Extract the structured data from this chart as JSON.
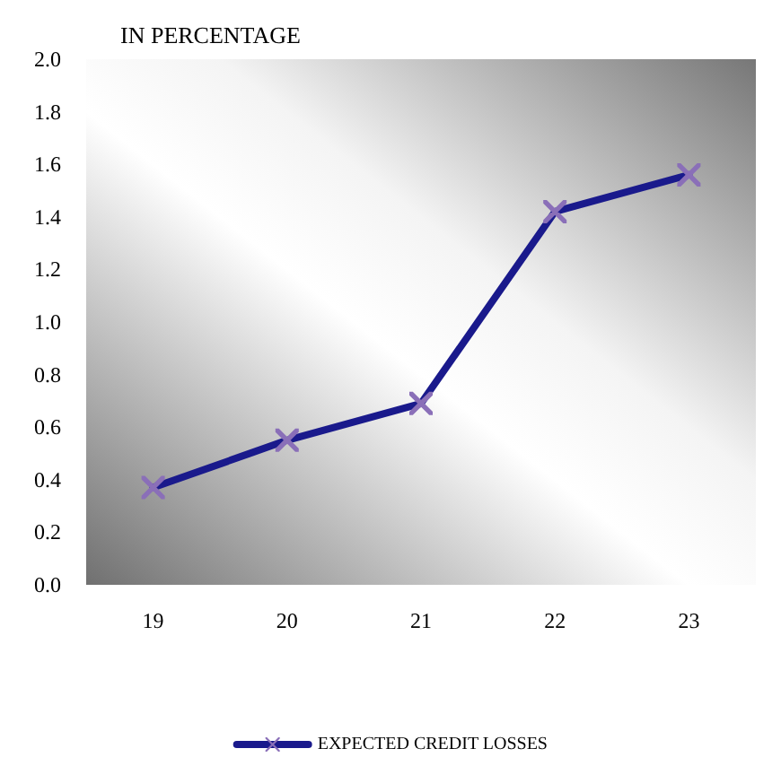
{
  "chart_data": {
    "type": "line",
    "title": "IN PERCENTAGE",
    "categories": [
      "19",
      "20",
      "21",
      "22",
      "23"
    ],
    "series": [
      {
        "name": "EXPECTED CREDIT LOSSES",
        "color": "#1a1a8c",
        "values": [
          0.37,
          0.55,
          0.69,
          1.42,
          1.56
        ]
      }
    ],
    "ylim": [
      0,
      2
    ],
    "yticks": [
      {
        "value": 0,
        "label": "0.0"
      },
      0.2,
      0.4,
      0.6,
      0.8,
      {
        "value": 1,
        "label": "1.0"
      },
      1.2,
      1.4,
      1.6,
      1.8,
      {
        "value": 2,
        "label": "2.0"
      }
    ],
    "grid": false,
    "legend": "bottom",
    "marker": "cross",
    "line_style": "solid"
  }
}
